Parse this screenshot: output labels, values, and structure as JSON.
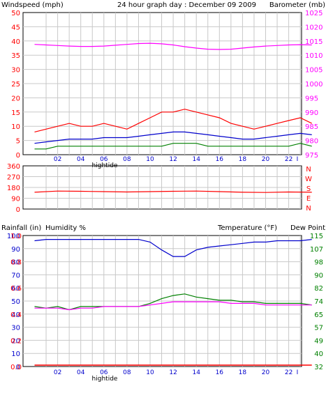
{
  "colors": {
    "wind_speed": "#ff0000",
    "wind_gust": "#ff0000",
    "wind_avg": "#008000",
    "barometer": "#ff00ff",
    "wind_dir": "#ff0000",
    "rain": "#ff0000",
    "humidity": "#0000cc",
    "temperature": "#008000",
    "dew_point": "#ff00ff",
    "panel_bg": "#ffffff",
    "grid": "#c8c8c8",
    "frame": "#000000",
    "tide": "#0000cc"
  },
  "chart_data": [
    {
      "type": "line",
      "title": "24 hour graph day : December 09 2009",
      "ylabel": "Windspeed (mph)",
      "y2label": "Barometer (mb)",
      "y_ticks": [
        "50",
        "45",
        "40",
        "35",
        "30",
        "25",
        "20",
        "15",
        "10",
        "5",
        "0"
      ],
      "y2_ticks": [
        "1025",
        "1020",
        "1015",
        "1010",
        "1005",
        "1000",
        "995",
        "990",
        "985",
        "980",
        "975"
      ],
      "x_ticks": [
        "02",
        "04",
        "06",
        "08",
        "10",
        "12",
        "14",
        "16",
        "18",
        "20",
        "22",
        "I"
      ],
      "tide_label": "hightide",
      "ylim": [
        0,
        50
      ],
      "y2lim": [
        975,
        1025
      ],
      "grid": true,
      "series": [
        {
          "name": "",
          "key": "wind_speed",
          "axis": "left",
          "x": [
            0,
            1,
            2,
            3,
            4,
            5,
            6,
            7,
            8,
            9,
            10,
            11,
            12,
            13,
            14,
            15,
            16,
            17,
            18,
            19,
            20,
            21,
            22,
            23,
            24
          ],
          "values": [
            8,
            9,
            10,
            11,
            10,
            10,
            11,
            10,
            9,
            11,
            13,
            15,
            15,
            16,
            15,
            14,
            13,
            11,
            10,
            9,
            10,
            11,
            12,
            13,
            11
          ]
        },
        {
          "name": "",
          "key": "wind_avg",
          "axis": "left",
          "x": [
            0,
            1,
            2,
            3,
            4,
            5,
            6,
            7,
            8,
            9,
            10,
            11,
            12,
            13,
            14,
            15,
            16,
            17,
            18,
            19,
            20,
            21,
            22,
            23,
            24
          ],
          "values": [
            2,
            2,
            3,
            3,
            3,
            3,
            3,
            3,
            3,
            3,
            3,
            3,
            4,
            4,
            4,
            3,
            3,
            3,
            3,
            3,
            3,
            3,
            3,
            4,
            3
          ]
        },
        {
          "name": "",
          "key": "wind_line",
          "axis": "left",
          "x": [
            0,
            1,
            2,
            3,
            4,
            5,
            6,
            7,
            8,
            9,
            10,
            11,
            12,
            13,
            14,
            15,
            16,
            17,
            18,
            19,
            20,
            21,
            22,
            23,
            24
          ],
          "values": [
            4,
            4.5,
            5,
            5.5,
            5.5,
            5.5,
            6,
            6,
            6,
            6.5,
            7,
            7.5,
            8,
            8,
            7.5,
            7,
            6.5,
            6,
            5.5,
            5.5,
            6,
            6.5,
            7,
            7.5,
            7
          ]
        },
        {
          "name": "",
          "key": "barometer",
          "axis": "right",
          "x": [
            0,
            1,
            2,
            3,
            4,
            5,
            6,
            7,
            8,
            9,
            10,
            11,
            12,
            13,
            14,
            15,
            16,
            17,
            18,
            19,
            20,
            21,
            22,
            23,
            24
          ],
          "values": [
            1013.8,
            1013.6,
            1013.4,
            1013.2,
            1013.1,
            1013.1,
            1013.2,
            1013.5,
            1013.8,
            1014.1,
            1014.2,
            1014.0,
            1013.6,
            1013.0,
            1012.5,
            1012.1,
            1012.0,
            1012.1,
            1012.5,
            1012.9,
            1013.2,
            1013.4,
            1013.6,
            1013.7,
            1013.6
          ]
        }
      ]
    },
    {
      "type": "line",
      "y_ticks": [
        "360",
        "270",
        "180",
        "90",
        "0"
      ],
      "right_labels": [
        "N",
        "W",
        "S",
        "E",
        "N"
      ],
      "ylim": [
        0,
        360
      ],
      "grid": true,
      "series": [
        {
          "name": "",
          "key": "wind_dir",
          "x": [
            0,
            2,
            4,
            6,
            8,
            10,
            12,
            14,
            16,
            18,
            20,
            22,
            24
          ],
          "values": [
            140,
            150,
            148,
            145,
            142,
            145,
            148,
            150,
            145,
            140,
            138,
            142,
            140
          ]
        }
      ]
    },
    {
      "type": "line",
      "ylabel": "Rainfall (in)",
      "y2label": "Humidity %",
      "y3label": "Temperature (°F)",
      "y4label": "Dew Point",
      "rain_ticks": [
        "1.0",
        "0.8",
        "0.6",
        "0.4",
        "0.2",
        "0.0"
      ],
      "humidity_ticks": [
        "100",
        "90",
        "80",
        "70",
        "60",
        "50",
        "40",
        "30",
        "20",
        "10",
        "0"
      ],
      "temp_ticks": [
        "115",
        "107",
        "98",
        "90",
        "82",
        "74",
        "65",
        "57",
        "49",
        "40",
        "32"
      ],
      "x_ticks": [
        "02",
        "04",
        "06",
        "08",
        "10",
        "12",
        "14",
        "16",
        "18",
        "20",
        "22",
        "I"
      ],
      "tide_label": "hightide",
      "ylim": [
        0,
        100
      ],
      "grid": true,
      "series": [
        {
          "name": "",
          "key": "humidity",
          "x": [
            0,
            1,
            2,
            3,
            4,
            5,
            6,
            7,
            8,
            9,
            10,
            11,
            12,
            13,
            14,
            15,
            16,
            17,
            18,
            19,
            20,
            21,
            22,
            23,
            24
          ],
          "values": [
            96,
            97,
            97,
            97,
            97,
            97,
            97,
            97,
            97,
            97,
            95,
            89,
            84,
            84,
            89,
            91,
            92,
            93,
            94,
            95,
            95,
            96,
            96,
            96,
            97
          ]
        },
        {
          "name": "",
          "key": "temperature",
          "x": [
            0,
            1,
            2,
            3,
            4,
            5,
            6,
            7,
            8,
            9,
            10,
            11,
            12,
            13,
            14,
            15,
            16,
            17,
            18,
            19,
            20,
            21,
            22,
            23,
            24
          ],
          "values": [
            70,
            69,
            70,
            68,
            70,
            70,
            70,
            70,
            70,
            70,
            72,
            75,
            77,
            78,
            76,
            75,
            74,
            74,
            73,
            73,
            72,
            72,
            72,
            72,
            71
          ]
        },
        {
          "name": "",
          "key": "dew_point",
          "x": [
            0,
            1,
            2,
            3,
            4,
            5,
            6,
            7,
            8,
            9,
            10,
            11,
            12,
            13,
            14,
            15,
            16,
            17,
            18,
            19,
            20,
            21,
            22,
            23,
            24
          ],
          "values": [
            69,
            69,
            69,
            68,
            69,
            69,
            70,
            70,
            70,
            70,
            71,
            72,
            73,
            73,
            73,
            73,
            73,
            72,
            72,
            72,
            71,
            71,
            71,
            71,
            71
          ]
        },
        {
          "name": "",
          "key": "rain",
          "x": [
            0,
            24
          ],
          "values": [
            0,
            0
          ]
        }
      ]
    }
  ]
}
